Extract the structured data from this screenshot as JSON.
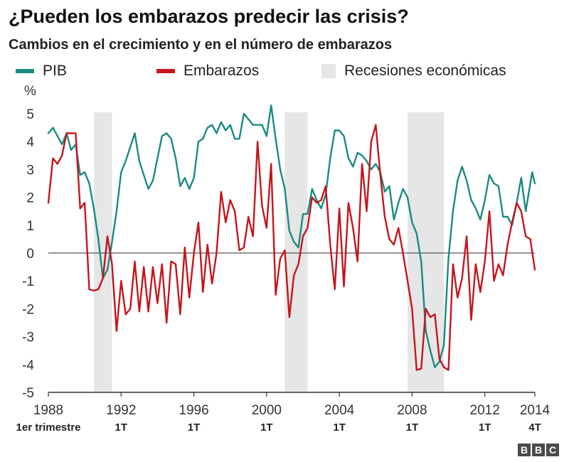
{
  "title": "¿Pueden los embarazos predecir las crisis?",
  "subtitle": "Cambios en el crecimiento y en el número de embarazos",
  "logo": [
    "B",
    "B",
    "C"
  ],
  "colors": {
    "pib": "#1a8a82",
    "embarazos": "#c4161c",
    "recession": "#e6e6e6",
    "zero": "#555555"
  },
  "legend": [
    {
      "label": "PIB",
      "type": "line",
      "color": "#1a8a82"
    },
    {
      "label": "Embarazos",
      "type": "line",
      "color": "#c4161c"
    },
    {
      "label": "Recesiones económicas",
      "type": "band",
      "color": "#e6e6e6"
    }
  ],
  "chart_data": {
    "type": "line",
    "ylabel": "%",
    "ylim": [
      -5,
      5
    ],
    "yticks": [
      5,
      4,
      3,
      2,
      1,
      0,
      -1,
      -2,
      -3,
      -4,
      -5
    ],
    "xlim": [
      1988.0,
      2014.75
    ],
    "xticks": [
      {
        "x": 1988.0,
        "label": "1988",
        "sublabel": "1er trimestre"
      },
      {
        "x": 1992.0,
        "label": "1992",
        "sublabel": "1T"
      },
      {
        "x": 1996.0,
        "label": "1996",
        "sublabel": "1T"
      },
      {
        "x": 2000.0,
        "label": "2000",
        "sublabel": "1T"
      },
      {
        "x": 2004.0,
        "label": "2004",
        "sublabel": "1T"
      },
      {
        "x": 2008.0,
        "label": "2008",
        "sublabel": "1T"
      },
      {
        "x": 2012.0,
        "label": "2012",
        "sublabel": "1T"
      },
      {
        "x": 2014.75,
        "label": "2014",
        "sublabel": "4T"
      }
    ],
    "recessions": [
      [
        1990.5,
        1991.5
      ],
      [
        2001.0,
        2002.25
      ],
      [
        2007.75,
        2009.75
      ]
    ],
    "series": [
      {
        "name": "PIB",
        "color": "#1a8a82",
        "points": [
          [
            1988.0,
            4.3
          ],
          [
            1988.25,
            4.5
          ],
          [
            1988.5,
            4.2
          ],
          [
            1988.75,
            3.9
          ],
          [
            1989.0,
            4.3
          ],
          [
            1989.25,
            3.7
          ],
          [
            1989.5,
            3.9
          ],
          [
            1989.75,
            2.8
          ],
          [
            1990.0,
            2.9
          ],
          [
            1990.25,
            2.5
          ],
          [
            1990.5,
            1.6
          ],
          [
            1990.75,
            0.5
          ],
          [
            1991.0,
            -0.9
          ],
          [
            1991.25,
            -0.6
          ],
          [
            1991.5,
            0.4
          ],
          [
            1991.75,
            1.5
          ],
          [
            1992.0,
            2.9
          ],
          [
            1992.25,
            3.3
          ],
          [
            1992.5,
            3.8
          ],
          [
            1992.75,
            4.3
          ],
          [
            1993.0,
            3.3
          ],
          [
            1993.25,
            2.8
          ],
          [
            1993.5,
            2.3
          ],
          [
            1993.75,
            2.6
          ],
          [
            1994.0,
            3.4
          ],
          [
            1994.25,
            4.2
          ],
          [
            1994.5,
            4.3
          ],
          [
            1994.75,
            4.1
          ],
          [
            1995.0,
            3.4
          ],
          [
            1995.25,
            2.4
          ],
          [
            1995.5,
            2.7
          ],
          [
            1995.75,
            2.3
          ],
          [
            1996.0,
            2.7
          ],
          [
            1996.25,
            4.0
          ],
          [
            1996.5,
            4.1
          ],
          [
            1996.75,
            4.5
          ],
          [
            1997.0,
            4.6
          ],
          [
            1997.25,
            4.3
          ],
          [
            1997.5,
            4.7
          ],
          [
            1997.75,
            4.4
          ],
          [
            1998.0,
            4.6
          ],
          [
            1998.25,
            4.1
          ],
          [
            1998.5,
            4.1
          ],
          [
            1998.75,
            5.0
          ],
          [
            1999.0,
            4.8
          ],
          [
            1999.25,
            4.6
          ],
          [
            1999.5,
            4.6
          ],
          [
            1999.75,
            4.6
          ],
          [
            2000.0,
            4.2
          ],
          [
            2000.25,
            5.3
          ],
          [
            2000.5,
            4.1
          ],
          [
            2000.75,
            3.0
          ],
          [
            2001.0,
            2.3
          ],
          [
            2001.25,
            0.8
          ],
          [
            2001.5,
            0.4
          ],
          [
            2001.75,
            0.2
          ],
          [
            2002.0,
            1.4
          ],
          [
            2002.25,
            1.4
          ],
          [
            2002.5,
            2.3
          ],
          [
            2002.75,
            1.9
          ],
          [
            2003.0,
            1.6
          ],
          [
            2003.25,
            2.1
          ],
          [
            2003.5,
            3.4
          ],
          [
            2003.75,
            4.4
          ],
          [
            2004.0,
            4.4
          ],
          [
            2004.25,
            4.2
          ],
          [
            2004.5,
            3.4
          ],
          [
            2004.75,
            3.1
          ],
          [
            2005.0,
            3.6
          ],
          [
            2005.25,
            3.5
          ],
          [
            2005.5,
            3.3
          ],
          [
            2005.75,
            3.0
          ],
          [
            2006.0,
            3.2
          ],
          [
            2006.25,
            2.9
          ],
          [
            2006.5,
            2.2
          ],
          [
            2006.75,
            2.4
          ],
          [
            2007.0,
            1.2
          ],
          [
            2007.25,
            1.8
          ],
          [
            2007.5,
            2.3
          ],
          [
            2007.75,
            2.0
          ],
          [
            2008.0,
            1.1
          ],
          [
            2008.25,
            0.7
          ],
          [
            2008.5,
            -0.3
          ],
          [
            2008.75,
            -2.8
          ],
          [
            2009.0,
            -3.5
          ],
          [
            2009.25,
            -4.1
          ],
          [
            2009.5,
            -3.9
          ],
          [
            2009.75,
            -3.3
          ],
          [
            2010.0,
            -0.2
          ],
          [
            2010.25,
            1.5
          ],
          [
            2010.5,
            2.6
          ],
          [
            2010.75,
            3.1
          ],
          [
            2011.0,
            2.6
          ],
          [
            2011.25,
            1.9
          ],
          [
            2011.5,
            1.6
          ],
          [
            2011.75,
            1.2
          ],
          [
            2012.0,
            1.9
          ],
          [
            2012.25,
            2.8
          ],
          [
            2012.5,
            2.5
          ],
          [
            2012.75,
            2.4
          ],
          [
            2013.0,
            1.3
          ],
          [
            2013.25,
            1.3
          ],
          [
            2013.5,
            1.0
          ],
          [
            2013.75,
            1.8
          ],
          [
            2014.0,
            2.7
          ],
          [
            2014.25,
            1.5
          ],
          [
            2014.5,
            2.5
          ],
          [
            2014.6,
            2.9
          ],
          [
            2014.75,
            2.5
          ]
        ]
      },
      {
        "name": "Embarazos",
        "color": "#c4161c",
        "points": [
          [
            1988.0,
            1.8
          ],
          [
            1988.25,
            3.4
          ],
          [
            1988.5,
            3.2
          ],
          [
            1988.75,
            3.5
          ],
          [
            1989.0,
            4.3
          ],
          [
            1989.25,
            4.3
          ],
          [
            1989.5,
            4.3
          ],
          [
            1989.75,
            1.6
          ],
          [
            1990.0,
            1.8
          ],
          [
            1990.25,
            -1.3
          ],
          [
            1990.5,
            -1.35
          ],
          [
            1990.75,
            -1.3
          ],
          [
            1991.0,
            -0.9
          ],
          [
            1991.25,
            0.6
          ],
          [
            1991.5,
            -0.4
          ],
          [
            1991.75,
            -2.8
          ],
          [
            1992.0,
            -1.0
          ],
          [
            1992.25,
            -2.2
          ],
          [
            1992.5,
            -2.0
          ],
          [
            1992.75,
            -0.3
          ],
          [
            1993.0,
            -2.1
          ],
          [
            1993.25,
            -0.5
          ],
          [
            1993.5,
            -2.1
          ],
          [
            1993.75,
            -0.5
          ],
          [
            1994.0,
            -1.8
          ],
          [
            1994.25,
            -0.4
          ],
          [
            1994.5,
            -2.5
          ],
          [
            1994.75,
            -0.3
          ],
          [
            1995.0,
            -0.4
          ],
          [
            1995.25,
            -2.2
          ],
          [
            1995.5,
            0.2
          ],
          [
            1995.75,
            -1.6
          ],
          [
            1996.0,
            0.0
          ],
          [
            1996.25,
            1.1
          ],
          [
            1996.5,
            -1.4
          ],
          [
            1996.75,
            0.3
          ],
          [
            1997.0,
            -1.1
          ],
          [
            1997.25,
            0.0
          ],
          [
            1997.5,
            2.2
          ],
          [
            1997.75,
            1.1
          ],
          [
            1998.0,
            1.9
          ],
          [
            1998.25,
            1.5
          ],
          [
            1998.5,
            0.1
          ],
          [
            1998.75,
            0.2
          ],
          [
            1999.0,
            1.3
          ],
          [
            1999.25,
            0.6
          ],
          [
            1999.5,
            4.0
          ],
          [
            1999.75,
            1.7
          ],
          [
            2000.0,
            0.9
          ],
          [
            2000.25,
            3.2
          ],
          [
            2000.5,
            -1.5
          ],
          [
            2000.75,
            -0.2
          ],
          [
            2001.0,
            0.1
          ],
          [
            2001.25,
            -2.3
          ],
          [
            2001.5,
            -0.8
          ],
          [
            2001.75,
            -0.4
          ],
          [
            2002.0,
            0.6
          ],
          [
            2002.25,
            0.9
          ],
          [
            2002.5,
            2.0
          ],
          [
            2002.75,
            1.8
          ],
          [
            2003.0,
            1.9
          ],
          [
            2003.25,
            2.4
          ],
          [
            2003.5,
            0.3
          ],
          [
            2003.75,
            -1.3
          ],
          [
            2004.0,
            1.6
          ],
          [
            2004.25,
            -1.2
          ],
          [
            2004.5,
            1.8
          ],
          [
            2004.75,
            0.9
          ],
          [
            2005.0,
            -0.3
          ],
          [
            2005.25,
            3.2
          ],
          [
            2005.5,
            1.5
          ],
          [
            2005.75,
            4.0
          ],
          [
            2006.0,
            4.6
          ],
          [
            2006.25,
            2.8
          ],
          [
            2006.5,
            1.3
          ],
          [
            2006.75,
            0.5
          ],
          [
            2007.0,
            0.3
          ],
          [
            2007.25,
            0.9
          ],
          [
            2007.5,
            0.0
          ],
          [
            2007.75,
            -1.0
          ],
          [
            2008.0,
            -2.0
          ],
          [
            2008.25,
            -4.2
          ],
          [
            2008.5,
            -4.15
          ],
          [
            2008.75,
            -2.0
          ],
          [
            2009.0,
            -2.3
          ],
          [
            2009.25,
            -2.2
          ],
          [
            2009.5,
            -3.8
          ],
          [
            2009.75,
            -4.1
          ],
          [
            2010.0,
            -4.2
          ],
          [
            2010.25,
            -0.4
          ],
          [
            2010.5,
            -1.6
          ],
          [
            2010.75,
            -0.9
          ],
          [
            2011.0,
            0.6
          ],
          [
            2011.25,
            -2.4
          ],
          [
            2011.5,
            -0.4
          ],
          [
            2011.75,
            -1.4
          ],
          [
            2012.0,
            -0.3
          ],
          [
            2012.25,
            1.5
          ],
          [
            2012.5,
            -1.0
          ],
          [
            2012.75,
            -0.4
          ],
          [
            2013.0,
            -0.8
          ],
          [
            2013.25,
            0.3
          ],
          [
            2013.5,
            1.1
          ],
          [
            2013.75,
            1.8
          ],
          [
            2014.0,
            1.5
          ],
          [
            2014.25,
            0.6
          ],
          [
            2014.5,
            0.5
          ],
          [
            2014.75,
            -0.6
          ]
        ]
      }
    ]
  }
}
